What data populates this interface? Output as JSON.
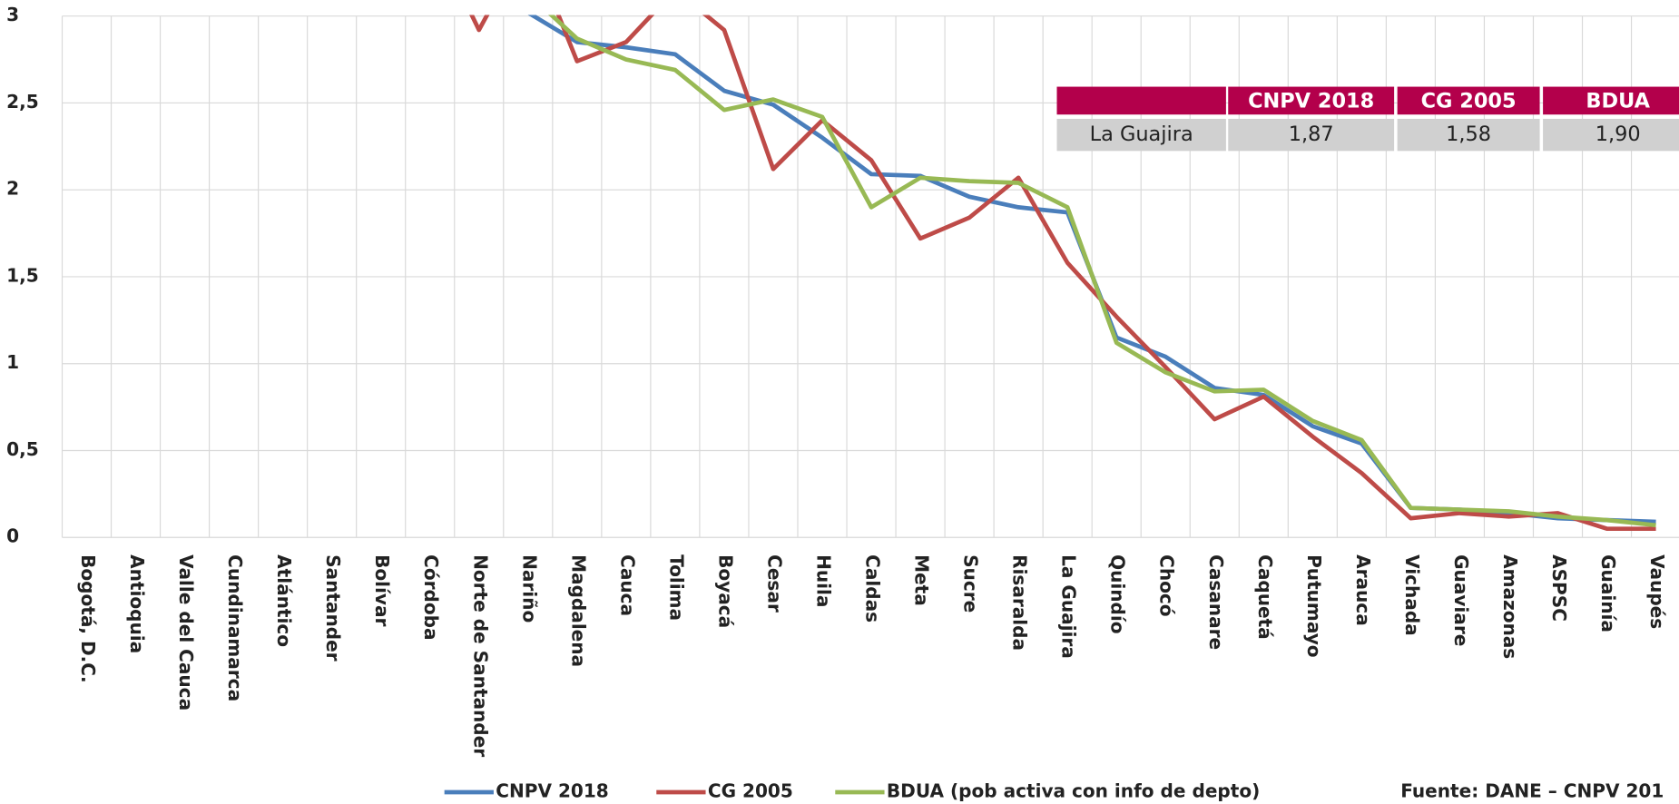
{
  "chart_data": {
    "type": "line",
    "categories": [
      "Bogotá, D.C.",
      "Antioquia",
      "Valle del Cauca",
      "Cundinamarca",
      "Atlántico",
      "Santander",
      "Bolívar",
      "Córdoba",
      "Norte de Santander",
      "Nariño",
      "Magdalena",
      "Cauca",
      "Tolima",
      "Boyacá",
      "Cesar",
      "Huila",
      "Caldas",
      "Meta",
      "Sucre",
      "Risaralda",
      "La Guajira",
      "Quindío",
      "Chocó",
      "Casanare",
      "Caquetá",
      "Putumayo",
      "Arauca",
      "Vichada",
      "Guaviare",
      "Amazonas",
      "ASPSC",
      "Guainía",
      "Vaupés"
    ],
    "series": [
      {
        "name": "CNPV 2018",
        "color": "#4a7ebb",
        "values": [
          null,
          null,
          null,
          null,
          null,
          null,
          null,
          null,
          null,
          3.02,
          2.85,
          2.82,
          2.78,
          2.57,
          2.49,
          2.3,
          2.09,
          2.08,
          1.96,
          1.9,
          1.87,
          1.15,
          1.04,
          0.86,
          0.82,
          0.64,
          0.54,
          0.17,
          0.16,
          0.14,
          0.11,
          0.1,
          0.09
        ]
      },
      {
        "name": "CG 2005",
        "color": "#be4b48",
        "values": [
          null,
          null,
          null,
          null,
          null,
          null,
          null,
          3.5,
          2.92,
          3.44,
          2.74,
          2.85,
          3.15,
          2.92,
          2.12,
          2.4,
          2.17,
          1.72,
          1.84,
          2.07,
          1.58,
          1.27,
          0.98,
          0.68,
          0.81,
          0.58,
          0.37,
          0.11,
          0.14,
          0.12,
          0.14,
          0.05,
          0.05
        ]
      },
      {
        "name": "BDUA (pob activa con info de depto)",
        "color": "#98b954",
        "values": [
          null,
          null,
          null,
          null,
          null,
          null,
          null,
          null,
          null,
          3.13,
          2.87,
          2.75,
          2.69,
          2.46,
          2.52,
          2.42,
          1.9,
          2.07,
          2.05,
          2.04,
          1.9,
          1.12,
          0.95,
          0.84,
          0.85,
          0.67,
          0.56,
          0.17,
          0.16,
          0.15,
          0.12,
          0.1,
          0.07
        ]
      }
    ],
    "ylim": [
      0,
      3
    ],
    "yticks": [
      0,
      {
        "value": 0.5,
        "label": "0,5"
      },
      1,
      {
        "value": 1.5,
        "label": "1,5"
      },
      2,
      {
        "value": 2.5,
        "label": "2,5"
      },
      3
    ],
    "grid": true,
    "source": "Fuente: DANE – CNPV 201",
    "table": {
      "header": [
        "CNPV 2018",
        "CG 2005",
        "BDUA"
      ],
      "rows": [
        [
          "La Guajira",
          "1,87",
          "1,58",
          "1,90"
        ]
      ],
      "header_color": "#b3004b",
      "row_color": "#d0d0d0"
    }
  }
}
